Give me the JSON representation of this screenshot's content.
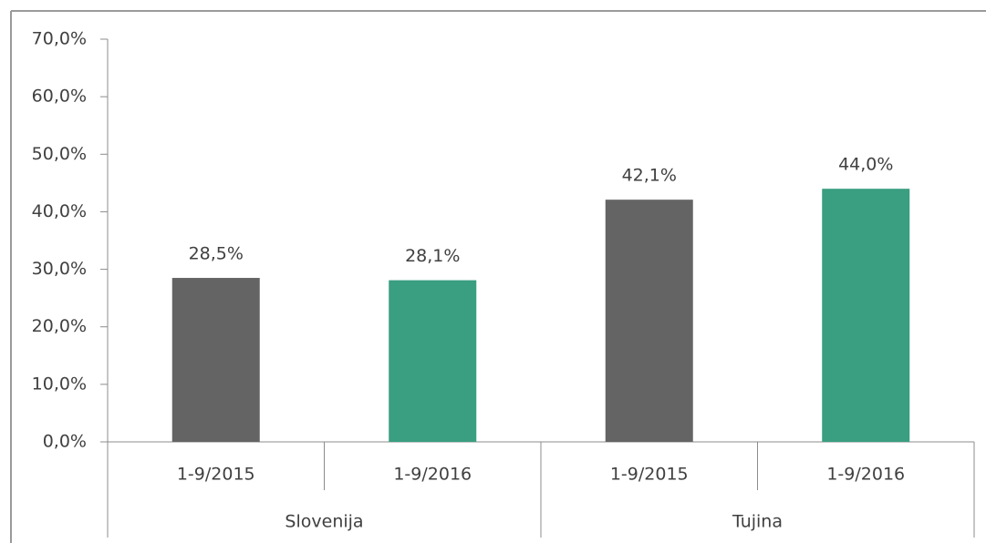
{
  "chart_data": {
    "type": "bar",
    "categories": [
      "1-9/2015",
      "1-9/2016",
      "1-9/2015",
      "1-9/2016"
    ],
    "groups": [
      "Slovenija",
      "Tujina"
    ],
    "values": [
      28.5,
      28.1,
      42.1,
      44.0
    ],
    "value_labels": [
      "28,5%",
      "28,1%",
      "42,1%",
      "44,0%"
    ],
    "colors": [
      "#646464",
      "#3a9e80",
      "#646464",
      "#3a9e80"
    ],
    "ylim": [
      0,
      70
    ],
    "yticks": [
      {
        "value": 0,
        "label": "0,0%"
      },
      {
        "value": 10,
        "label": "10,0%"
      },
      {
        "value": 20,
        "label": "20,0%"
      },
      {
        "value": 30,
        "label": "30,0%"
      },
      {
        "value": 40,
        "label": "40,0%"
      },
      {
        "value": 50,
        "label": "50,0%"
      },
      {
        "value": 60,
        "label": "60,0%"
      },
      {
        "value": 70,
        "label": "70,0%"
      }
    ],
    "grid": false
  }
}
